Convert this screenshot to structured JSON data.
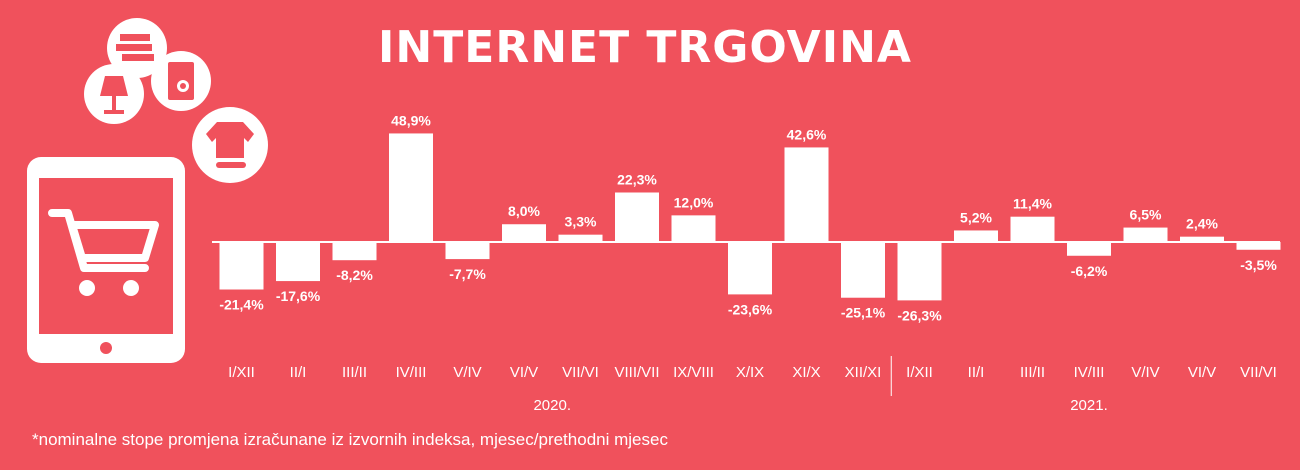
{
  "header": {
    "title": "INTERNET TRGOVINA"
  },
  "footnote": "*nominalne stope promjena izračunane iz izvornih indeksa, mjesec/prethodni mjesec",
  "chart_data": {
    "type": "bar",
    "title": "INTERNET TRGOVINA",
    "xlabel": "",
    "ylabel": "",
    "categories": [
      "I/XII",
      "II/I",
      "III/II",
      "IV/III",
      "V/IV",
      "VI/V",
      "VII/VI",
      "VIII/VII",
      "IX/VIII",
      "X/IX",
      "XI/X",
      "XII/XI",
      "I/XII",
      "II/I",
      "III/II",
      "IV/III",
      "V/IV",
      "VI/V",
      "VII/VI"
    ],
    "values": [
      -21.4,
      -17.6,
      -8.2,
      48.9,
      -7.7,
      8.0,
      3.3,
      22.3,
      12.0,
      -23.6,
      42.6,
      -25.1,
      -26.3,
      5.2,
      11.4,
      -6.2,
      6.5,
      2.4,
      -3.5
    ],
    "value_labels": [
      "-21,4%",
      "-17,6%",
      "-8,2%",
      "48,9%",
      "-7,7%",
      "8,0%",
      "3,3%",
      "22,3%",
      "12,0%",
      "-23,6%",
      "42,6%",
      "-25,1%",
      "-26,3%",
      "5,2%",
      "11,4%",
      "-6,2%",
      "6,5%",
      "2,4%",
      "-3,5%"
    ],
    "year_groups": [
      {
        "label": "2020.",
        "start": 0,
        "end": 11
      },
      {
        "label": "2021.",
        "start": 12,
        "end": 18
      }
    ],
    "ylim": [
      -30,
      50
    ],
    "grid": false,
    "colors": {
      "bar": "#ffffff",
      "background": "#f0515c",
      "text": "#ffffff"
    }
  },
  "icons": [
    "tablet-icon",
    "shopping-cart-icon",
    "books-icon",
    "lamp-icon",
    "refrigerator-icon",
    "clothing-icon"
  ]
}
